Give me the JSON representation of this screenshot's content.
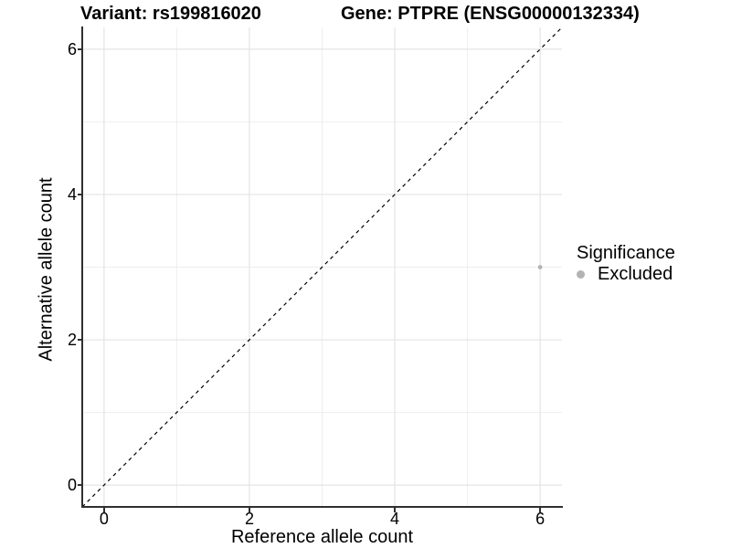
{
  "header": {
    "title_left": "Variant: rs199816020",
    "title_right": "Gene: PTPRE (ENSG00000132334)"
  },
  "axes": {
    "x": {
      "label": "Reference allele count",
      "tick_labels": [
        "0",
        "2",
        "4",
        "6"
      ]
    },
    "y": {
      "label": "Alternative allele count",
      "tick_labels": [
        "0",
        "2",
        "4",
        "6"
      ]
    }
  },
  "legend": {
    "title": "Significance",
    "items": [
      {
        "label": "Excluded",
        "color": "#b3b3b3"
      }
    ]
  },
  "colors": {
    "background": "#ffffff",
    "grid_major": "#e4e4e4",
    "grid_minor": "#eeeeee",
    "axis": "#2f2f2f",
    "text": "#000000",
    "point": "#b3b3b3",
    "identity_line": "#000000"
  },
  "chart_data": {
    "type": "scatter",
    "title": "Variant: rs199816020 / Gene: PTPRE (ENSG00000132334)",
    "xlabel": "Reference allele count",
    "ylabel": "Alternative allele count",
    "xlim": [
      -0.3,
      6.3
    ],
    "ylim": [
      -0.3,
      6.3
    ],
    "x_ticks": [
      0,
      2,
      4,
      6
    ],
    "y_ticks": [
      0,
      2,
      4,
      6
    ],
    "minor_ticks": [
      1,
      3,
      5
    ],
    "grid": "major and minor gridlines on white panel",
    "legend_position": "right",
    "series": [
      {
        "name": "Excluded",
        "color": "#b3b3b3",
        "point_radius": 2.4,
        "points": [
          {
            "x": 6,
            "y": 3
          }
        ]
      }
    ],
    "reference_line": {
      "type": "identity",
      "slope": 1,
      "intercept": 0,
      "style": "dashed",
      "color": "#000000"
    }
  }
}
